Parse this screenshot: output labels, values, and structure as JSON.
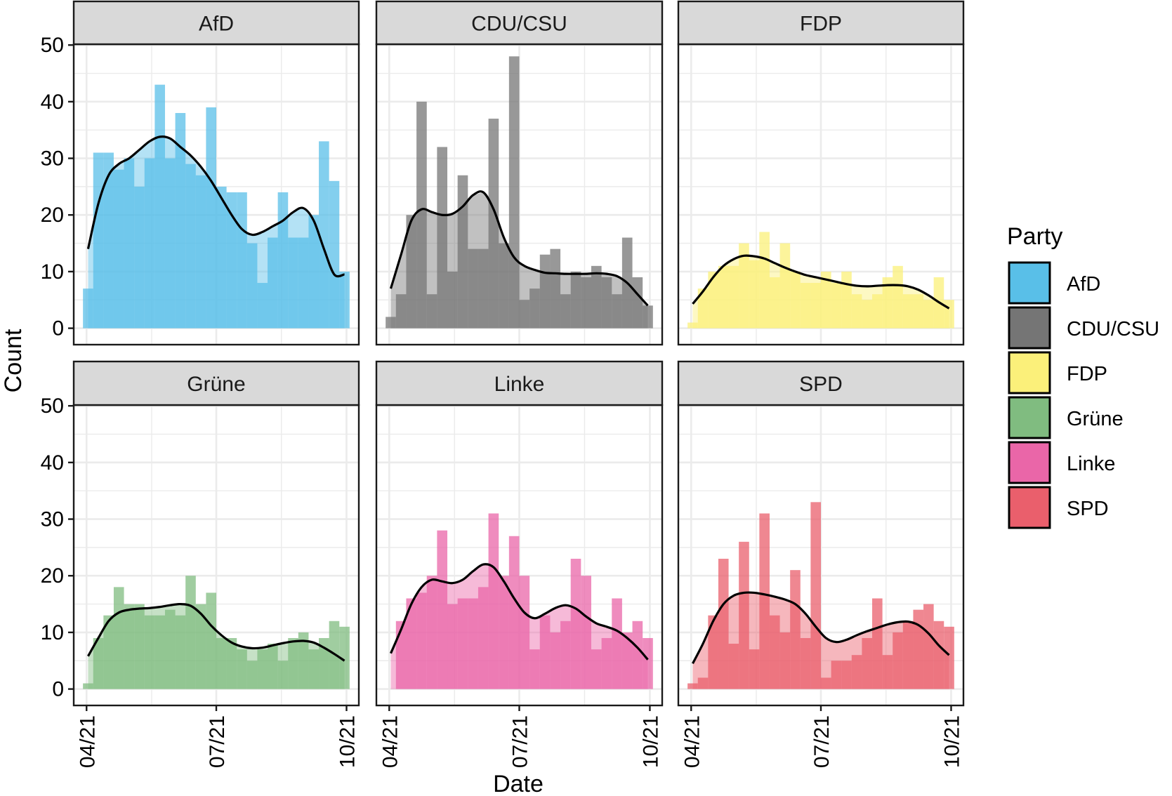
{
  "chart_data": {
    "type": "bar",
    "subtype": "faceted histogram with density overlay",
    "xlabel": "Date",
    "ylabel": "Count",
    "ylim": [
      0,
      50
    ],
    "y_ticks": [
      0,
      10,
      20,
      30,
      40,
      50
    ],
    "x_ticks": [
      "04/21",
      "07/21",
      "10/21"
    ],
    "x_domain_note": "26 weekly-ish bins from 04/21 to ~10/21",
    "grid": true,
    "legend": {
      "title": "Party",
      "position": "right",
      "entries": [
        {
          "label": "AfD",
          "color": "#59BFE8"
        },
        {
          "label": "CDU/CSU",
          "color": "#757575"
        },
        {
          "label": "FDP",
          "color": "#FBF07A"
        },
        {
          "label": "Grüne",
          "color": "#80BC80"
        },
        {
          "label": "Linke",
          "color": "#EA66A8"
        },
        {
          "label": "SPD",
          "color": "#EA5F6C"
        }
      ]
    },
    "panels": [
      {
        "name": "AfD",
        "color": "#59BFE8",
        "counts": [
          7,
          31,
          31,
          28,
          30,
          25,
          30,
          43,
          30,
          38,
          29,
          27,
          39,
          25,
          24,
          24,
          15,
          8,
          16,
          24,
          16,
          16,
          20,
          33,
          26,
          10
        ],
        "density": [
          14,
          22,
          27,
          29,
          30,
          31.5,
          33,
          33.8,
          33.5,
          32,
          30.5,
          28.5,
          26,
          23,
          20,
          17.5,
          16.5,
          17,
          18,
          19,
          20.5,
          21.2,
          19,
          14,
          9.5,
          9.5
        ]
      },
      {
        "name": "CDU/CSU",
        "color": "#757575",
        "counts": [
          2,
          6,
          20,
          40,
          6,
          32,
          10,
          27,
          14,
          14,
          37,
          15,
          48,
          5,
          7,
          13,
          14,
          6,
          10,
          9,
          11,
          9,
          6,
          16,
          9,
          4
        ],
        "density": [
          7,
          13,
          19,
          21,
          20.5,
          20,
          20.2,
          21.5,
          23.5,
          24,
          21,
          16,
          12.5,
          11,
          10.3,
          9.8,
          9.7,
          9.6,
          9.6,
          9.6,
          9.7,
          9.6,
          9.2,
          8,
          6,
          4
        ]
      },
      {
        "name": "FDP",
        "color": "#FBF07A",
        "counts": [
          1,
          7,
          10,
          11,
          11,
          15,
          12,
          17,
          9,
          15,
          10,
          8,
          8,
          10,
          8,
          10,
          6,
          5,
          6,
          9,
          11,
          6,
          6,
          5,
          9,
          5
        ],
        "density": [
          4.3,
          6.5,
          9,
          11,
          12.2,
          12.8,
          12.7,
          12.3,
          11.5,
          10.7,
          10,
          9.4,
          9,
          8.6,
          8.2,
          7.8,
          7.5,
          7.4,
          7.5,
          7.6,
          7.6,
          7.4,
          6.8,
          5.8,
          4.6,
          3.5
        ]
      },
      {
        "name": "Grüne",
        "color": "#80BC80",
        "counts": [
          1,
          9,
          13,
          18,
          15,
          15,
          13,
          13,
          14,
          13,
          20,
          15,
          17,
          9,
          9,
          7,
          5,
          7,
          8,
          5,
          9,
          10,
          7,
          9,
          12,
          11
        ],
        "density": [
          5.8,
          9,
          12,
          13.5,
          14,
          14.2,
          14.3,
          14.5,
          14.8,
          15,
          14.7,
          13.3,
          11.2,
          9.5,
          8.2,
          7.5,
          7.2,
          7.3,
          7.7,
          8.1,
          8.4,
          8.5,
          8.2,
          7.3,
          6.2,
          5
        ]
      },
      {
        "name": "Linke",
        "color": "#EA66A8",
        "counts": [
          0,
          12,
          16,
          17,
          20,
          28,
          15,
          16,
          16,
          18,
          31,
          20,
          27,
          20,
          7,
          13,
          10,
          12,
          23,
          20,
          7,
          9,
          16,
          10,
          12,
          9
        ],
        "density": [
          6.3,
          10.5,
          15,
          18,
          19.3,
          19,
          18.7,
          19.3,
          20.8,
          22,
          21.5,
          19,
          16,
          13.5,
          12.5,
          13.3,
          14.3,
          14.8,
          14.2,
          12.8,
          11.6,
          11,
          10.3,
          9,
          7.3,
          5.2
        ]
      },
      {
        "name": "SPD",
        "color": "#EA5F6C",
        "counts": [
          1,
          2,
          13,
          23,
          8,
          26,
          7,
          31,
          13,
          10,
          21,
          9,
          33,
          2,
          5,
          5,
          6,
          9,
          16,
          6,
          10,
          12,
          14,
          15,
          12,
          11
        ],
        "density": [
          4.5,
          8,
          12,
          15,
          16.5,
          17,
          17,
          16.7,
          16.3,
          15.8,
          15,
          13.3,
          11,
          9,
          8.3,
          8.7,
          9.5,
          10.2,
          10.8,
          11.4,
          11.8,
          11.9,
          11.3,
          9.8,
          7.7,
          6
        ]
      }
    ]
  }
}
